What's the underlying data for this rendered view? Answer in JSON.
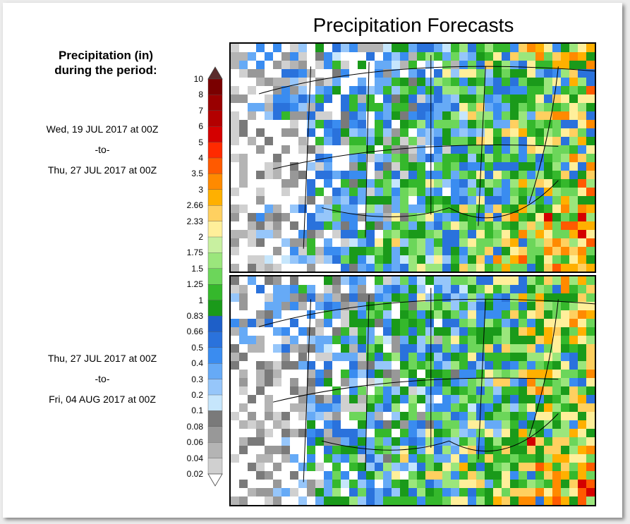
{
  "title": "Precipitation Forecasts",
  "legend": {
    "heading_line1": "Precipitation (in)",
    "heading_line2": "during the period:",
    "levels": [
      "10",
      "8",
      "7",
      "6",
      "5",
      "4",
      "3.5",
      "3",
      "2.66",
      "2.33",
      "2",
      "1.75",
      "1.5",
      "1.25",
      "1",
      "0.83",
      "0.66",
      "0.5",
      "0.4",
      "0.3",
      "0.2",
      "0.1",
      "0.08",
      "0.06",
      "0.04",
      "0.02"
    ],
    "colors": [
      "#5b2c2c",
      "#7a0000",
      "#990000",
      "#b30000",
      "#d40000",
      "#ff2a00",
      "#ff5a00",
      "#ff8a00",
      "#ffb000",
      "#ffd060",
      "#ffef9a",
      "#c8f0a0",
      "#9be67c",
      "#6cd65a",
      "#35b82c",
      "#1a9a1a",
      "#1e5fc8",
      "#2a72dc",
      "#3a8cf0",
      "#66aaf6",
      "#96c6fa",
      "#c6e6fc",
      "#7a7a7a",
      "#989898",
      "#b4b4b4",
      "#d0d0d0"
    ]
  },
  "periods": [
    {
      "start": "Wed, 19 JUL 2017 at 00Z",
      "sep": "-to-",
      "end": "Thu, 27 JUL 2017 at 00Z"
    },
    {
      "start": "Thu, 27 JUL 2017 at 00Z",
      "sep": "-to-",
      "end": "Fri, 04 AUG 2017 at 00Z"
    }
  ],
  "maps": [
    {
      "name": "upper-precip-map"
    },
    {
      "name": "lower-precip-map"
    }
  ]
}
